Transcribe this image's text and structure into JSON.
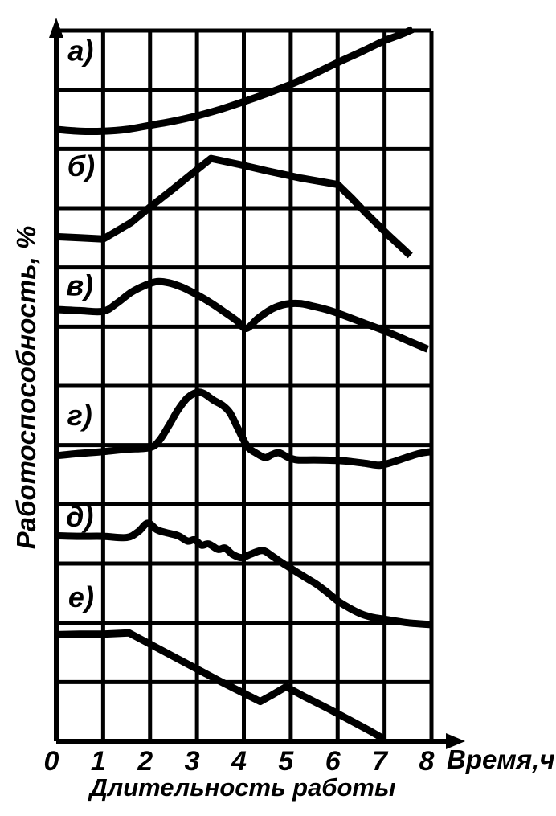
{
  "chart_data": {
    "type": "line",
    "title": "",
    "xlabel": "Время,ч",
    "x_caption": "Длительность работы",
    "ylabel": "Работоспособность,  %",
    "x_ticks": [
      "0",
      "1",
      "2",
      "3",
      "4",
      "5",
      "6",
      "7",
      "8"
    ],
    "x_range": [
      0,
      8
    ],
    "y_range_grid_divisions": [
      0,
      12
    ],
    "y_tick_labels": "none (qualitative percent axis, unlabeled)",
    "grid": "on",
    "legend": "none; six stacked curve panels labeled on-chart",
    "line_color": "#000000",
    "series": [
      {
        "name": "а)",
        "key": "a",
        "smooth": true,
        "label_pos": [
          0.52,
          11.67
        ],
        "note": "steady accelerating rise to top at ~7.6 h",
        "points": [
          [
            0,
            10.33
          ],
          [
            0.5,
            10.3
          ],
          [
            1,
            10.3
          ],
          [
            1.5,
            10.33
          ],
          [
            2,
            10.4
          ],
          [
            2.5,
            10.47
          ],
          [
            3,
            10.56
          ],
          [
            3.5,
            10.67
          ],
          [
            4,
            10.8
          ],
          [
            4.5,
            10.94
          ],
          [
            5,
            11.09
          ],
          [
            5.5,
            11.27
          ],
          [
            6,
            11.46
          ],
          [
            6.5,
            11.64
          ],
          [
            7,
            11.83
          ],
          [
            7.3,
            11.92
          ],
          [
            7.6,
            12.02
          ]
        ]
      },
      {
        "name": "б)",
        "key": "b",
        "smooth": false,
        "label_pos": [
          0.53,
          9.72
        ],
        "note": "flat to 1 h, linear rise to peak at ~3.3 h, slow then fast decline",
        "points": [
          [
            0,
            8.52
          ],
          [
            0.5,
            8.5
          ],
          [
            1,
            8.48
          ],
          [
            1.6,
            8.76
          ],
          [
            2,
            9.02
          ],
          [
            2.5,
            9.33
          ],
          [
            3,
            9.65
          ],
          [
            3.3,
            9.84
          ],
          [
            3.9,
            9.74
          ],
          [
            4.5,
            9.63
          ],
          [
            5.2,
            9.51
          ],
          [
            6,
            9.4
          ],
          [
            6.3,
            9.17
          ],
          [
            6.6,
            8.92
          ],
          [
            7.1,
            8.53
          ],
          [
            7.55,
            8.2
          ]
        ]
      },
      {
        "name": "в)",
        "key": "v",
        "smooth": true,
        "label_pos": [
          0.5,
          7.7
        ],
        "note": "two arches: peaks near 2.2 h and 5.2 h, dip at 4 h, sagging tail",
        "points": [
          [
            0,
            7.29
          ],
          [
            0.5,
            7.27
          ],
          [
            1,
            7.26
          ],
          [
            1.3,
            7.4
          ],
          [
            1.6,
            7.58
          ],
          [
            1.9,
            7.7
          ],
          [
            2.15,
            7.76
          ],
          [
            2.4,
            7.74
          ],
          [
            2.7,
            7.66
          ],
          [
            3,
            7.54
          ],
          [
            3.3,
            7.4
          ],
          [
            3.6,
            7.24
          ],
          [
            3.85,
            7.1
          ],
          [
            4.05,
            6.97
          ],
          [
            4.3,
            7.14
          ],
          [
            4.6,
            7.3
          ],
          [
            4.9,
            7.38
          ],
          [
            5.2,
            7.39
          ],
          [
            5.5,
            7.34
          ],
          [
            5.8,
            7.28
          ],
          [
            6.1,
            7.2
          ],
          [
            6.5,
            7.08
          ],
          [
            7,
            6.93
          ],
          [
            7.5,
            6.76
          ],
          [
            7.92,
            6.62
          ]
        ]
      },
      {
        "name": "г)",
        "key": "g",
        "smooth": true,
        "label_pos": [
          0.5,
          5.51
        ],
        "note": "near-flat baseline with one sharp burst peaking at 3 h, small ripples after",
        "points": [
          [
            0,
            4.82
          ],
          [
            0.5,
            4.86
          ],
          [
            1,
            4.89
          ],
          [
            1.5,
            4.93
          ],
          [
            2,
            4.96
          ],
          [
            2.2,
            5.08
          ],
          [
            2.4,
            5.33
          ],
          [
            2.6,
            5.6
          ],
          [
            2.8,
            5.8
          ],
          [
            3,
            5.89
          ],
          [
            3.15,
            5.87
          ],
          [
            3.35,
            5.76
          ],
          [
            3.55,
            5.67
          ],
          [
            3.7,
            5.55
          ],
          [
            3.85,
            5.32
          ],
          [
            4,
            5.08
          ],
          [
            4.1,
            4.95
          ],
          [
            4.25,
            4.87
          ],
          [
            4.45,
            4.79
          ],
          [
            4.6,
            4.84
          ],
          [
            4.75,
            4.87
          ],
          [
            4.95,
            4.79
          ],
          [
            5.15,
            4.75
          ],
          [
            5.5,
            4.75
          ],
          [
            6,
            4.74
          ],
          [
            6.3,
            4.72
          ],
          [
            6.6,
            4.69
          ],
          [
            6.9,
            4.66
          ],
          [
            7.2,
            4.72
          ],
          [
            7.5,
            4.8
          ],
          [
            7.75,
            4.86
          ],
          [
            8,
            4.89
          ]
        ]
      },
      {
        "name": "д)",
        "key": "d",
        "smooth": true,
        "label_pos": [
          0.5,
          3.8
        ],
        "note": "small bump at ~2 h then irregular stepped decline, flattening near 8 h",
        "points": [
          [
            0,
            3.47
          ],
          [
            0.5,
            3.46
          ],
          [
            1,
            3.46
          ],
          [
            1.5,
            3.44
          ],
          [
            1.75,
            3.54
          ],
          [
            1.95,
            3.68
          ],
          [
            2.15,
            3.57
          ],
          [
            2.35,
            3.52
          ],
          [
            2.6,
            3.47
          ],
          [
            2.8,
            3.38
          ],
          [
            2.95,
            3.4
          ],
          [
            3.1,
            3.31
          ],
          [
            3.25,
            3.33
          ],
          [
            3.45,
            3.24
          ],
          [
            3.6,
            3.26
          ],
          [
            3.75,
            3.16
          ],
          [
            3.95,
            3.1
          ],
          [
            4.15,
            3.16
          ],
          [
            4.4,
            3.22
          ],
          [
            4.6,
            3.13
          ],
          [
            4.8,
            3.02
          ],
          [
            5,
            2.92
          ],
          [
            5.3,
            2.77
          ],
          [
            5.55,
            2.65
          ],
          [
            5.8,
            2.5
          ],
          [
            6,
            2.37
          ],
          [
            6.25,
            2.25
          ],
          [
            6.5,
            2.15
          ],
          [
            6.75,
            2.09
          ],
          [
            7,
            2.06
          ],
          [
            7.5,
            2
          ],
          [
            8,
            1.97
          ]
        ]
      },
      {
        "name": "е)",
        "key": "e",
        "smooth": false,
        "label_pos": [
          0.53,
          2.44
        ],
        "note": "plateau to ~1.5 h, straight fall with brief recovery at 5 h, reaches axis at 7 h",
        "points": [
          [
            0,
            1.8
          ],
          [
            0.5,
            1.81
          ],
          [
            1,
            1.81
          ],
          [
            1.55,
            1.83
          ],
          [
            2,
            1.64
          ],
          [
            2.5,
            1.43
          ],
          [
            3,
            1.22
          ],
          [
            3.5,
            1.01
          ],
          [
            4,
            0.81
          ],
          [
            4.35,
            0.67
          ],
          [
            4.6,
            0.78
          ],
          [
            4.9,
            0.92
          ],
          [
            5.3,
            0.75
          ],
          [
            5.8,
            0.55
          ],
          [
            6.3,
            0.34
          ],
          [
            6.7,
            0.17
          ],
          [
            7,
            0.03
          ]
        ]
      }
    ]
  }
}
